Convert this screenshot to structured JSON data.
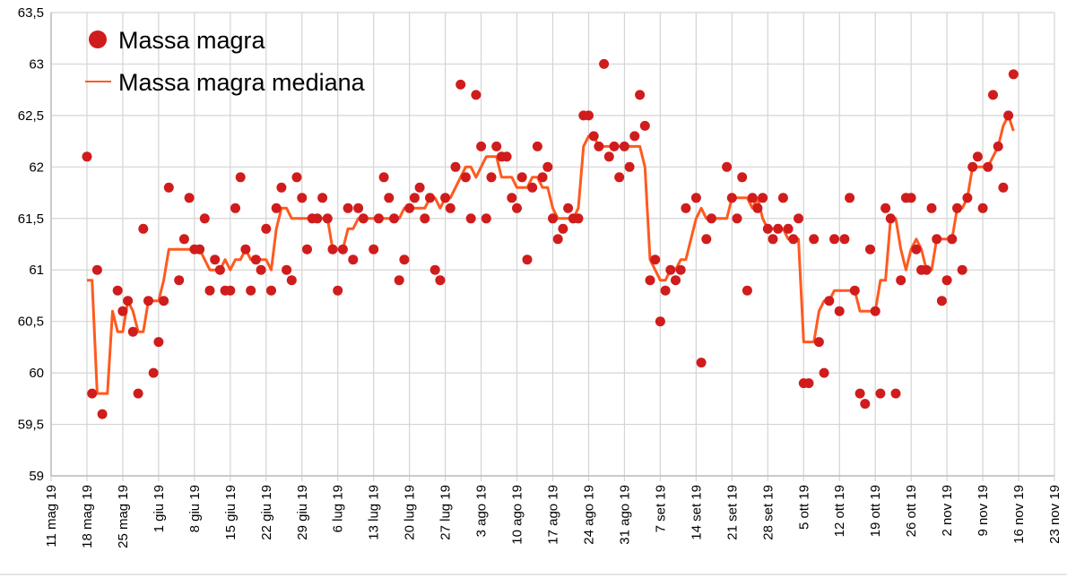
{
  "chart_data": {
    "type": "scatter",
    "title": "",
    "xlabel": "",
    "ylabel": "",
    "ylim": [
      59,
      63.5
    ],
    "y_ticks": [
      "59",
      "59,5",
      "60",
      "60,5",
      "61",
      "61,5",
      "62",
      "62,5",
      "63",
      "63,5"
    ],
    "x_ticks": [
      "11 mag 19",
      "18 mag 19",
      "25 mag 19",
      "1 giu 19",
      "8 giu 19",
      "15 giu 19",
      "22 giu 19",
      "29 giu 19",
      "6 lug 19",
      "13 lug 19",
      "20 lug 19",
      "27 lug 19",
      "3 ago 19",
      "10 ago 19",
      "17 ago 19",
      "24 ago 19",
      "31 ago 19",
      "7 set 19",
      "14 set 19",
      "21 set 19",
      "28 set 19",
      "5 ott 19",
      "12 ott 19",
      "19 ott 19",
      "26 ott 19",
      "2 nov 19",
      "9 nov 19",
      "16 nov 19",
      "23 nov 19"
    ],
    "x_unit": "days since 18 mag 19 (x tick labels every 7 days starting 11 mag 19 = day -7)",
    "xlim_days": [
      -7,
      189
    ],
    "grid": true,
    "legend_position": "top-left",
    "series": [
      {
        "name": "Massa magra",
        "kind": "scatter",
        "color": "#d01c1c",
        "values": [
          62.1,
          59.8,
          61.0,
          59.6,
          null,
          null,
          60.8,
          60.6,
          60.7,
          60.4,
          59.8,
          61.4,
          60.7,
          60.0,
          60.3,
          60.7,
          61.8,
          null,
          60.9,
          61.3,
          61.7,
          61.2,
          61.2,
          61.5,
          60.8,
          61.1,
          61.0,
          60.8,
          60.8,
          61.6,
          61.9,
          61.2,
          60.8,
          61.1,
          61.0,
          61.4,
          60.8,
          61.6,
          61.8,
          61.0,
          60.9,
          61.9,
          61.7,
          61.2,
          61.5,
          61.5,
          61.7,
          61.5,
          61.2,
          60.8,
          61.2,
          61.6,
          61.1,
          61.6,
          61.5,
          null,
          61.2,
          61.5,
          61.9,
          61.7,
          61.5,
          60.9,
          61.1,
          61.6,
          61.7,
          61.8,
          61.5,
          61.7,
          61.0,
          60.9,
          61.7,
          61.6,
          62.0,
          62.8,
          61.9,
          61.5,
          62.7,
          62.2,
          61.5,
          61.9,
          62.2,
          62.1,
          62.1,
          61.7,
          61.6,
          61.9,
          61.1,
          61.8,
          62.2,
          61.9,
          62.0,
          61.5,
          61.3,
          61.4,
          61.6,
          61.5,
          61.5,
          62.5,
          62.5,
          62.3,
          62.2,
          63.0,
          62.1,
          62.2,
          61.9,
          62.2,
          62.0,
          62.3,
          62.7,
          62.4,
          60.9,
          61.1,
          60.5,
          60.8,
          61.0,
          60.9,
          61.0,
          61.6,
          null,
          61.7,
          60.1,
          61.3,
          61.5,
          null,
          null,
          62.0,
          61.7,
          61.5,
          61.9,
          60.8,
          61.7,
          61.6,
          61.7,
          61.4,
          61.3,
          61.4,
          61.7,
          61.4,
          61.3,
          61.5,
          59.9,
          59.9,
          61.3,
          60.3,
          60.0,
          60.7,
          61.3,
          60.6,
          61.3,
          61.7,
          60.8,
          59.8,
          59.7,
          61.2,
          60.6,
          59.8,
          61.6,
          61.5,
          59.8,
          60.9,
          61.7,
          61.7,
          61.2,
          61.0,
          61.0,
          61.6,
          61.3,
          60.7,
          60.9,
          61.3,
          61.6,
          61.0,
          61.7,
          62.0,
          62.1,
          61.6,
          62.0,
          62.7,
          62.2,
          61.8,
          62.5,
          62.9
        ]
      },
      {
        "name": "Massa magra mediana",
        "kind": "line",
        "color": "#ff5a1f",
        "values": [
          60.9,
          60.9,
          59.8,
          59.8,
          59.8,
          60.6,
          60.4,
          60.4,
          60.7,
          60.6,
          60.4,
          60.4,
          60.7,
          60.7,
          60.7,
          60.9,
          61.2,
          61.2,
          61.2,
          61.2,
          61.2,
          61.2,
          61.2,
          61.1,
          61.0,
          61.0,
          61.0,
          61.1,
          61.0,
          61.1,
          61.1,
          61.2,
          61.1,
          61.1,
          61.1,
          61.1,
          61.0,
          61.4,
          61.6,
          61.6,
          61.5,
          61.5,
          61.5,
          61.5,
          61.5,
          61.5,
          61.5,
          61.5,
          61.2,
          61.2,
          61.2,
          61.4,
          61.4,
          61.5,
          61.5,
          61.5,
          61.5,
          61.5,
          61.5,
          61.5,
          61.5,
          61.5,
          61.6,
          61.6,
          61.6,
          61.6,
          61.6,
          61.7,
          61.7,
          61.6,
          61.7,
          61.7,
          61.8,
          61.9,
          62.0,
          62.0,
          61.9,
          62.0,
          62.1,
          62.1,
          62.1,
          61.9,
          61.9,
          61.9,
          61.8,
          61.8,
          61.8,
          61.9,
          61.9,
          61.8,
          61.8,
          61.6,
          61.5,
          61.5,
          61.5,
          61.5,
          61.6,
          62.2,
          62.3,
          62.3,
          62.2,
          62.2,
          62.2,
          62.2,
          62.2,
          62.2,
          62.2,
          62.2,
          62.2,
          62.0,
          61.1,
          61.0,
          60.9,
          60.9,
          61.0,
          61.0,
          61.1,
          61.1,
          61.3,
          61.5,
          61.6,
          61.5,
          61.5,
          61.5,
          61.5,
          61.5,
          61.7,
          61.7,
          61.7,
          61.7,
          61.6,
          61.7,
          61.5,
          61.4,
          61.4,
          61.4,
          61.4,
          61.3,
          61.3,
          61.3,
          60.3,
          60.3,
          60.3,
          60.6,
          60.7,
          60.7,
          60.8,
          60.8,
          60.8,
          60.8,
          60.8,
          60.6,
          60.6,
          60.6,
          60.6,
          60.9,
          60.9,
          61.5,
          61.5,
          61.2,
          61.0,
          61.2,
          61.3,
          61.2,
          61.0,
          61.0,
          61.3,
          61.3,
          61.3,
          61.3,
          61.6,
          61.6,
          61.7,
          62.0,
          62.0,
          62.0,
          62.0,
          62.1,
          62.2,
          62.4,
          62.5,
          62.35
        ]
      }
    ]
  }
}
